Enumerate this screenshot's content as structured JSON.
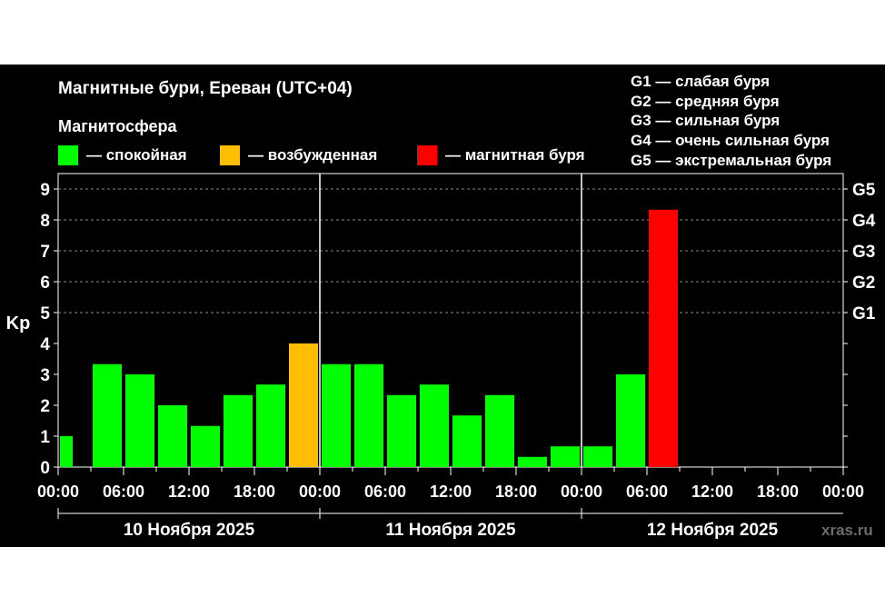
{
  "chart_data": {
    "type": "bar",
    "title": "Магнитные бури, Ереван (UTC+04)",
    "subtitle": "Магнитосфера",
    "ylabel": "Kp",
    "ylim": [
      0,
      9.5
    ],
    "yticks": [
      "0",
      "1",
      "2",
      "3",
      "4",
      "5",
      "6",
      "7",
      "8",
      "9"
    ],
    "grid": true,
    "legend": [
      {
        "label": "— спокойная",
        "color": "#00ff00"
      },
      {
        "label": "— возбужденная",
        "color": "#ffbf00"
      },
      {
        "label": "— магнитная буря",
        "color": "#ff0000"
      }
    ],
    "g_legend": [
      "G1 — слабая буря",
      "G2 — средняя буря",
      "G3 — сильная буря",
      "G4 — очень сильная буря",
      "G5 — экстремальная буря"
    ],
    "g_levels": [
      {
        "label": "G1",
        "kp": 5
      },
      {
        "label": "G2",
        "kp": 6
      },
      {
        "label": "G3",
        "kp": 7
      },
      {
        "label": "G4",
        "kp": 8
      },
      {
        "label": "G5",
        "kp": 9
      }
    ],
    "x_tick_labels": [
      "00:00",
      "06:00",
      "12:00",
      "18:00",
      "00:00",
      "06:00",
      "12:00",
      "18:00",
      "00:00",
      "06:00",
      "12:00",
      "18:00",
      "00:00"
    ],
    "dates": [
      "10 Ноября 2025",
      "11 Ноября 2025",
      "12 Ноября 2025"
    ],
    "bars": [
      {
        "start_hour": 0,
        "end_hour": 1.5,
        "kp": 1.0,
        "level": "quiet"
      },
      {
        "start_hour": 3,
        "end_hour": 6,
        "kp": 3.33,
        "level": "quiet"
      },
      {
        "start_hour": 6,
        "end_hour": 9,
        "kp": 3.0,
        "level": "quiet"
      },
      {
        "start_hour": 9,
        "end_hour": 12,
        "kp": 2.0,
        "level": "quiet"
      },
      {
        "start_hour": 12,
        "end_hour": 15,
        "kp": 1.33,
        "level": "quiet"
      },
      {
        "start_hour": 15,
        "end_hour": 18,
        "kp": 2.33,
        "level": "quiet"
      },
      {
        "start_hour": 18,
        "end_hour": 21,
        "kp": 2.67,
        "level": "quiet"
      },
      {
        "start_hour": 21,
        "end_hour": 24,
        "kp": 4.0,
        "level": "active"
      },
      {
        "start_hour": 24,
        "end_hour": 27,
        "kp": 3.33,
        "level": "quiet"
      },
      {
        "start_hour": 27,
        "end_hour": 30,
        "kp": 3.33,
        "level": "quiet"
      },
      {
        "start_hour": 30,
        "end_hour": 33,
        "kp": 2.33,
        "level": "quiet"
      },
      {
        "start_hour": 33,
        "end_hour": 36,
        "kp": 2.67,
        "level": "quiet"
      },
      {
        "start_hour": 36,
        "end_hour": 39,
        "kp": 1.67,
        "level": "quiet"
      },
      {
        "start_hour": 39,
        "end_hour": 42,
        "kp": 2.33,
        "level": "quiet"
      },
      {
        "start_hour": 42,
        "end_hour": 45,
        "kp": 0.33,
        "level": "quiet"
      },
      {
        "start_hour": 45,
        "end_hour": 48,
        "kp": 0.67,
        "level": "quiet"
      },
      {
        "start_hour": 48,
        "end_hour": 51,
        "kp": 0.67,
        "level": "quiet"
      },
      {
        "start_hour": 51,
        "end_hour": 54,
        "kp": 3.0,
        "level": "quiet"
      },
      {
        "start_hour": 54,
        "end_hour": 57,
        "kp": 8.33,
        "level": "storm"
      }
    ],
    "colors": {
      "quiet": "#00ff00",
      "active": "#ffbf00",
      "storm": "#ff0000",
      "background": "#000000",
      "grid": "#8a8a8a",
      "text": "#ffffff"
    }
  },
  "watermark": "xras.ru"
}
